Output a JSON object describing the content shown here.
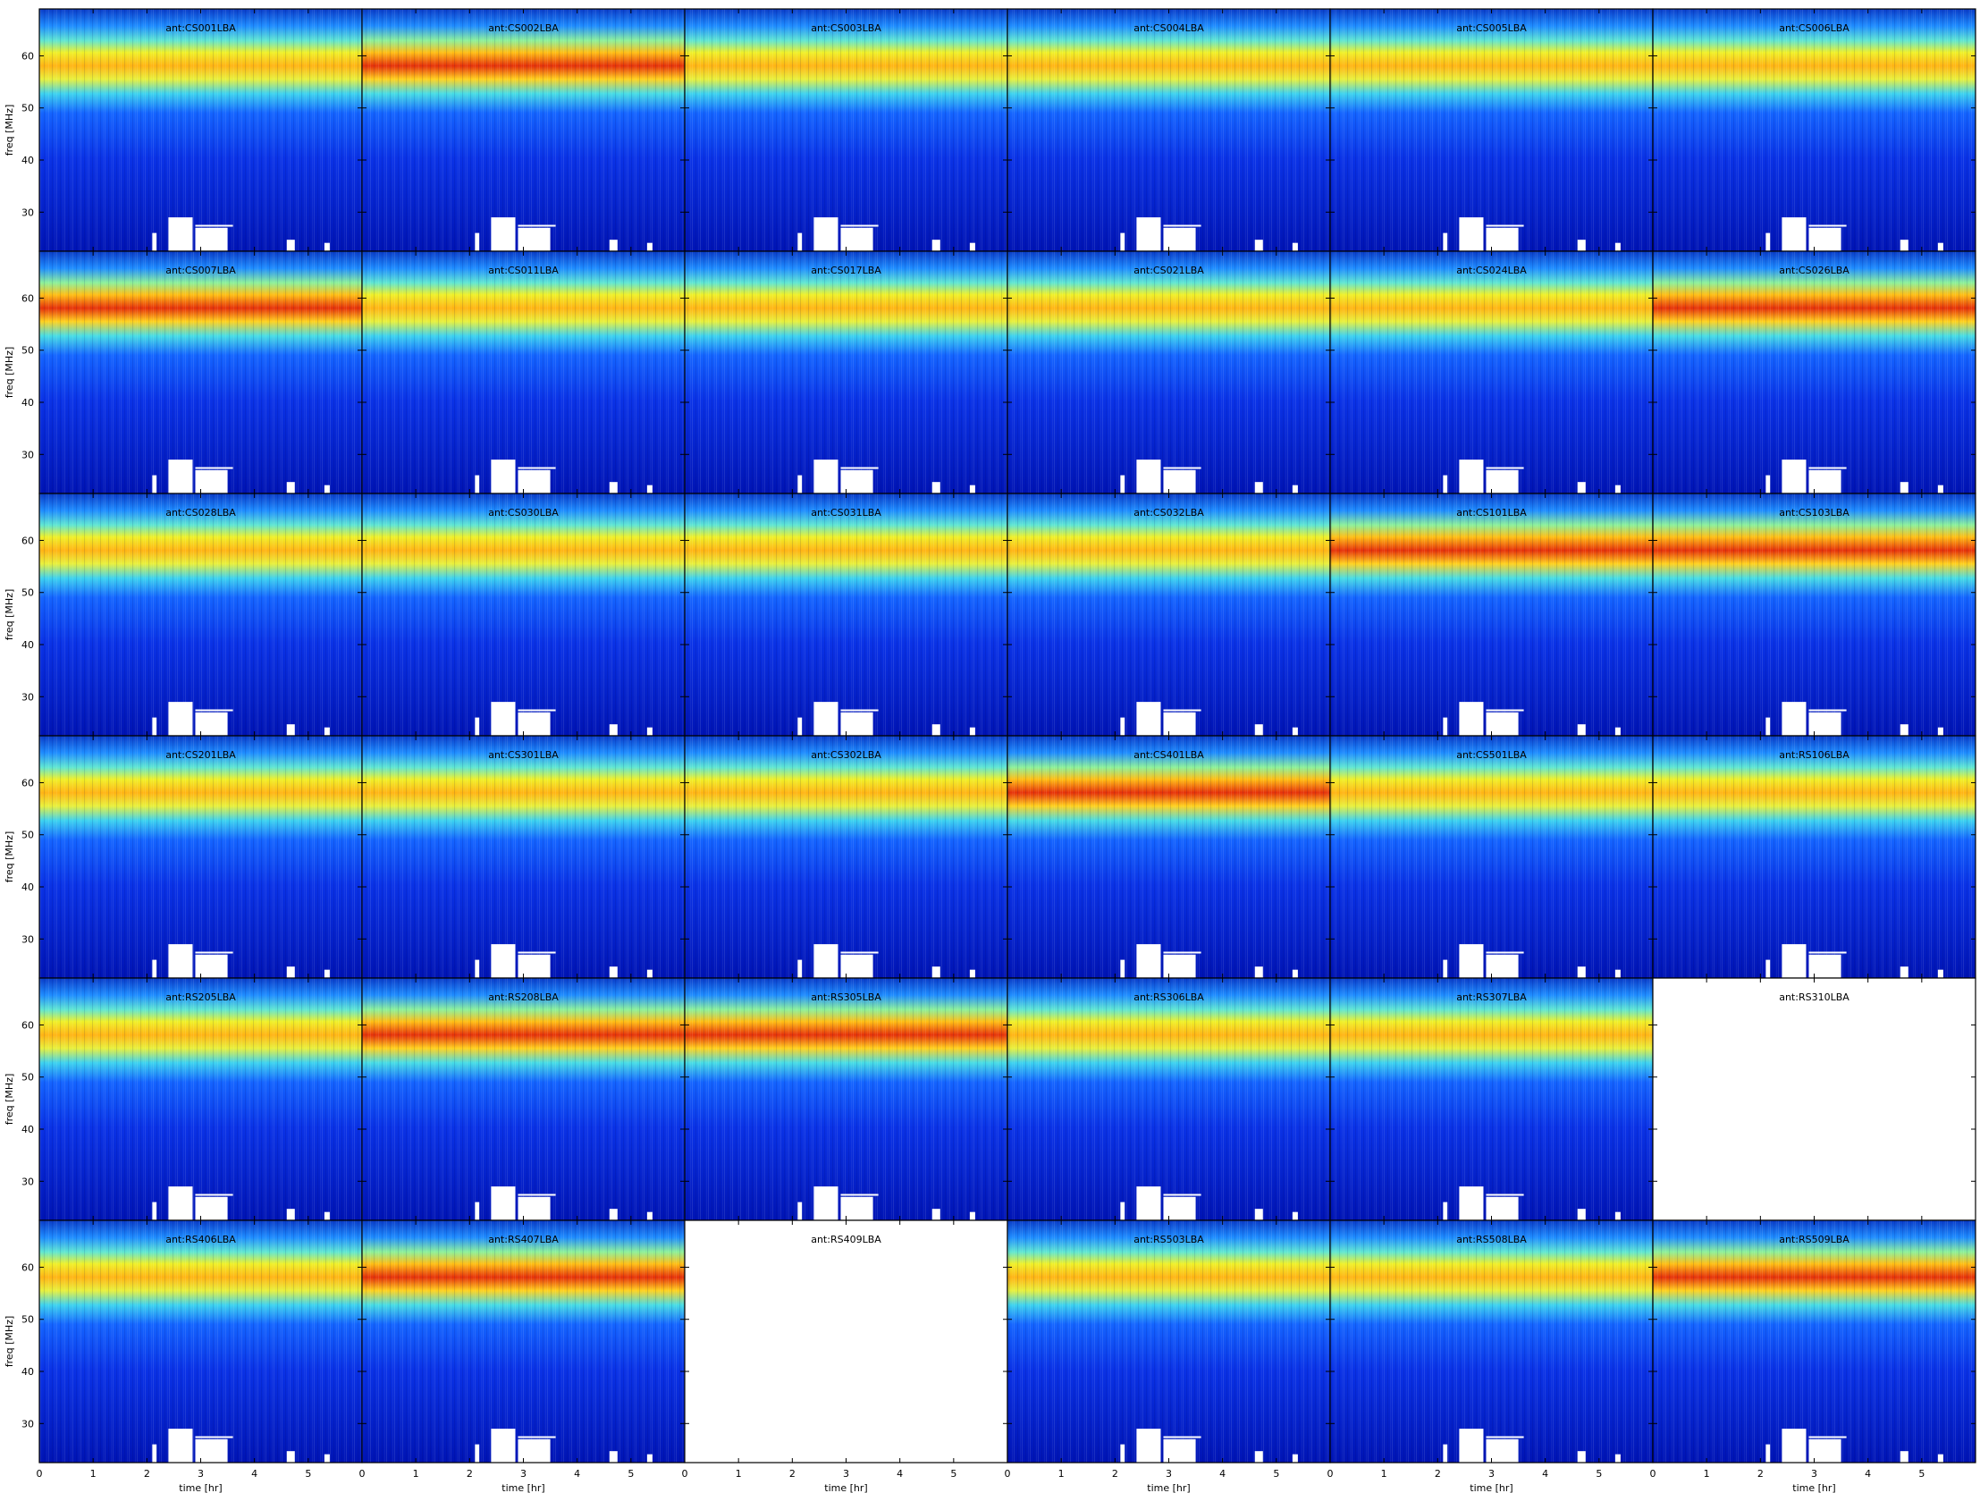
{
  "chart_data": {
    "type": "heatmap",
    "description_kind": "dynamic spectra grid",
    "grid": {
      "rows": 6,
      "cols": 6
    },
    "x_axis": {
      "label": "time [hr]",
      "range": [
        0,
        6
      ],
      "ticks": [
        0,
        1,
        2,
        3,
        4,
        5
      ]
    },
    "y_axis": {
      "label": "freq [MHz]",
      "range": [
        22.5,
        69
      ],
      "ticks": [
        30,
        40,
        50,
        60
      ]
    },
    "band_center_mhz": 58.5,
    "panels": [
      {
        "label": "ant:CS001LBA",
        "has_data": true
      },
      {
        "label": "ant:CS002LBA",
        "has_data": true
      },
      {
        "label": "ant:CS003LBA",
        "has_data": true
      },
      {
        "label": "ant:CS004LBA",
        "has_data": true
      },
      {
        "label": "ant:CS005LBA",
        "has_data": true
      },
      {
        "label": "ant:CS006LBA",
        "has_data": true
      },
      {
        "label": "ant:CS007LBA",
        "has_data": true
      },
      {
        "label": "ant:CS011LBA",
        "has_data": true
      },
      {
        "label": "ant:CS017LBA",
        "has_data": true
      },
      {
        "label": "ant:CS021LBA",
        "has_data": true
      },
      {
        "label": "ant:CS024LBA",
        "has_data": true
      },
      {
        "label": "ant:CS026LBA",
        "has_data": true
      },
      {
        "label": "ant:CS028LBA",
        "has_data": true
      },
      {
        "label": "ant:CS030LBA",
        "has_data": true
      },
      {
        "label": "ant:CS031LBA",
        "has_data": true
      },
      {
        "label": "ant:CS032LBA",
        "has_data": true
      },
      {
        "label": "ant:CS101LBA",
        "has_data": true
      },
      {
        "label": "ant:CS103LBA",
        "has_data": true
      },
      {
        "label": "ant:CS201LBA",
        "has_data": true
      },
      {
        "label": "ant:CS301LBA",
        "has_data": true
      },
      {
        "label": "ant:CS302LBA",
        "has_data": true
      },
      {
        "label": "ant:CS401LBA",
        "has_data": true
      },
      {
        "label": "ant:CS501LBA",
        "has_data": true
      },
      {
        "label": "ant:RS106LBA",
        "has_data": true
      },
      {
        "label": "ant:RS205LBA",
        "has_data": true
      },
      {
        "label": "ant:RS208LBA",
        "has_data": true
      },
      {
        "label": "ant:RS305LBA",
        "has_data": true
      },
      {
        "label": "ant:RS306LBA",
        "has_data": true
      },
      {
        "label": "ant:RS307LBA",
        "has_data": true
      },
      {
        "label": "ant:RS310LBA",
        "has_data": false
      },
      {
        "label": "ant:RS406LBA",
        "has_data": true
      },
      {
        "label": "ant:RS407LBA",
        "has_data": true
      },
      {
        "label": "ant:RS409LBA",
        "has_data": false
      },
      {
        "label": "ant:RS503LBA",
        "has_data": true
      },
      {
        "label": "ant:RS508LBA",
        "has_data": true
      },
      {
        "label": "ant:RS509LBA",
        "has_data": true
      }
    ],
    "colormap": {
      "low": "#0000a8",
      "mid": "#19b4ff",
      "high": "#ffd21e",
      "peak": "#d21e00"
    }
  }
}
